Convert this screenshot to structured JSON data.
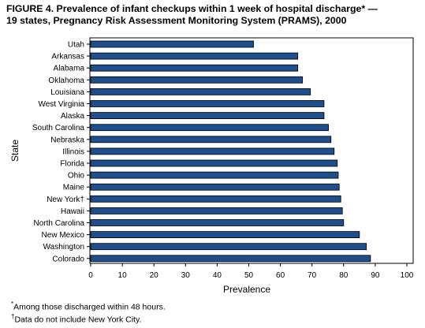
{
  "figure": {
    "title_line1": "FIGURE 4. Prevalence of infant checkups within 1 week of hospital discharge* —",
    "title_line2": "19 states, Pregnancy Risk Assessment Monitoring System (PRAMS), 2000"
  },
  "chart_data": {
    "type": "bar",
    "orientation": "horizontal",
    "xlabel": "Prevalence",
    "ylabel": "State",
    "xlim": [
      0,
      100
    ],
    "xticks": [
      0,
      10,
      20,
      30,
      40,
      50,
      60,
      70,
      80,
      90,
      100
    ],
    "grid": false,
    "bar_color": "#1f4e8c",
    "categories": [
      "Utah",
      "Arkansas",
      "Alabama",
      "Oklahoma",
      "Louisiana",
      "West Virginia",
      "Alaska",
      "South Carolina",
      "Nebraska",
      "Illinois",
      "Florida",
      "Ohio",
      "Maine",
      "New York†",
      "Hawaii",
      "North Carolina",
      "New Mexico",
      "Washington",
      "Colorado"
    ],
    "values": [
      51.5,
      65.5,
      65.5,
      67,
      69.5,
      73.8,
      73.8,
      75.2,
      76,
      77,
      78,
      78.3,
      78.6,
      79.1,
      79.6,
      80,
      85,
      87.2,
      88.5
    ]
  },
  "footnotes": {
    "note1_marker": "*",
    "note1_text": "Among those discharged within 48 hours.",
    "note2_marker": "†",
    "note2_text": "Data do not include New York City."
  }
}
